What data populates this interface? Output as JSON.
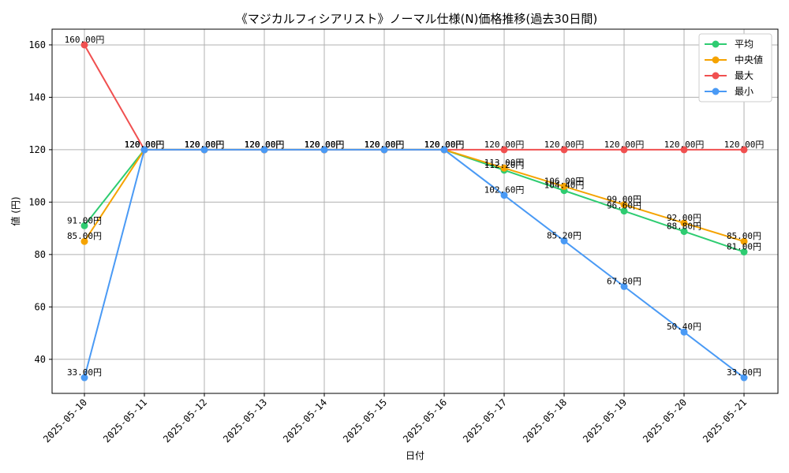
{
  "chart_data": {
    "type": "line",
    "title": "《マジカルフィシアリスト》ノーマル仕様(N)価格推移(過去30日間)",
    "xlabel": "日付",
    "ylabel": "値 (円)",
    "ylim": [
      27,
      166
    ],
    "yticks": [
      40,
      60,
      80,
      100,
      120,
      140,
      160
    ],
    "grid": true,
    "legend_position": "top-right",
    "categories": [
      "2025-05-10",
      "2025-05-11",
      "2025-05-12",
      "2025-05-13",
      "2025-05-14",
      "2025-05-15",
      "2025-05-16",
      "2025-05-17",
      "2025-05-18",
      "2025-05-19",
      "2025-05-20",
      "2025-05-21"
    ],
    "series": [
      {
        "name": "平均",
        "color": "#2ecc71",
        "values": [
          91,
          120,
          120,
          120,
          120,
          120,
          120,
          112.2,
          104.4,
          96.6,
          88.8,
          81
        ],
        "labels": [
          "91.00円",
          "120.00円",
          "120.00円",
          "120.00円",
          "120.00円",
          "120.00円",
          "120.00円",
          "112.20円",
          "104.40円",
          "96.60円",
          "88.80円",
          "81.00円"
        ]
      },
      {
        "name": "中央値",
        "color": "#f5a300",
        "values": [
          85,
          120,
          120,
          120,
          120,
          120,
          120,
          113,
          106,
          99,
          92,
          85
        ],
        "labels": [
          "85.00円",
          "120.00円",
          "120.00円",
          "120.00円",
          "120.00円",
          "120.00円",
          "120.00円",
          "113.00円",
          "106.00円",
          "99.00円",
          "92.00円",
          "85.00円"
        ]
      },
      {
        "name": "最大",
        "color": "#f05050",
        "values": [
          160,
          120,
          120,
          120,
          120,
          120,
          120,
          120,
          120,
          120,
          120,
          120
        ],
        "labels": [
          "160.00円",
          "120.00円",
          "120.00円",
          "120.00円",
          "120.00円",
          "120.00円",
          "120.00円",
          "120.00円",
          "120.00円",
          "120.00円",
          "120.00円",
          "120.00円"
        ]
      },
      {
        "name": "最小",
        "color": "#4a9af5",
        "values": [
          33,
          120,
          120,
          120,
          120,
          120,
          120,
          102.6,
          85.2,
          67.8,
          50.4,
          33
        ],
        "labels": [
          "33.00円",
          "120.00円",
          "120.00円",
          "120.00円",
          "120.00円",
          "120.00円",
          "120.00円",
          "102.60円",
          "85.20円",
          "67.80円",
          "50.40円",
          "33.00円"
        ]
      }
    ]
  }
}
